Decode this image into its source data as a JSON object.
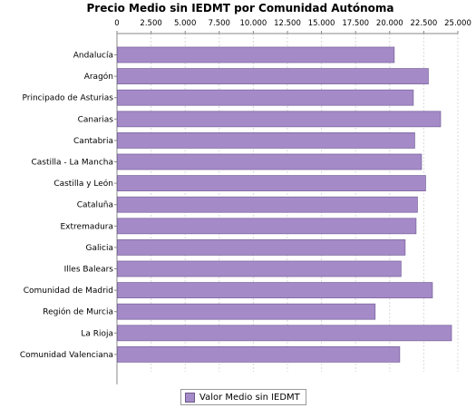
{
  "chart_data": {
    "type": "bar",
    "orientation": "horizontal",
    "title": "Precio Medio sin IEDMT por Comunidad Autónoma",
    "categories": [
      "Andalucía",
      "Aragón",
      "Principado de Asturias",
      "Canarias",
      "Cantabria",
      "Castilla - La Mancha",
      "Castilla y León",
      "Cataluña",
      "Extremadura",
      "Galicia",
      "Illes Balears",
      "Comunidad de Madrid",
      "Región de Murcia",
      "La Rioja",
      "Comunidad Valenciana"
    ],
    "series": [
      {
        "name": "Valor Medio sin IEDMT",
        "values": [
          20300,
          22800,
          21700,
          23700,
          21800,
          22300,
          22600,
          22000,
          21900,
          21100,
          20800,
          23100,
          18900,
          24500,
          20700
        ],
        "color": "#a58ac8"
      }
    ],
    "xlim": [
      0,
      25000
    ],
    "tick_values": [
      0,
      2500,
      5000,
      7500,
      10000,
      12500,
      15000,
      17500,
      20000,
      22500,
      25000
    ],
    "tick_labels": [
      "0",
      "2.500",
      "5.000",
      "7.500",
      "10.000",
      "12.500",
      "15.000",
      "17.500",
      "20.000",
      "22.500",
      "25.000"
    ],
    "axis_position": "top",
    "grid": true,
    "legend_position": "bottom"
  }
}
